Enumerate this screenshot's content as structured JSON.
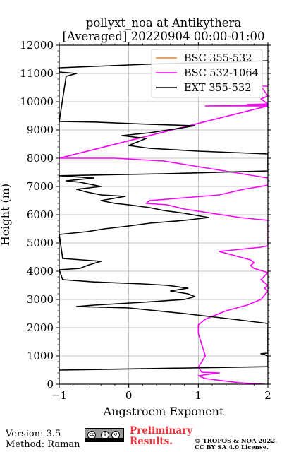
{
  "chart_data": {
    "type": "line",
    "title": "pollyxt_noa at Antikythera",
    "subtitle": "[Averaged] 20220904 00:00-01:00",
    "xlabel": "Angstroem Exponent",
    "ylabel": "Height (m)",
    "xlim": [
      -1,
      2
    ],
    "ylim": [
      0,
      12000
    ],
    "xticks": [
      "−1",
      "0",
      "1",
      "2"
    ],
    "yticks": [
      "0",
      "1000",
      "2000",
      "3000",
      "4000",
      "5000",
      "6000",
      "7000",
      "8000",
      "9000",
      "10000",
      "11000",
      "12000"
    ],
    "grid": true,
    "legend_position": "top-right",
    "series": [
      {
        "name": "BSC 355-532",
        "color": "#ff7f0e",
        "points": []
      },
      {
        "name": "BSC 532-1064",
        "color": "#ff00ff",
        "points": [
          [
            1.95,
            0
          ],
          [
            1.6,
            50
          ],
          [
            1.35,
            120
          ],
          [
            1.1,
            200
          ],
          [
            1.0,
            300
          ],
          [
            1.3,
            400
          ],
          [
            1.05,
            420
          ],
          [
            1.0,
            600
          ],
          [
            1.05,
            800
          ],
          [
            1.1,
            1000
          ],
          [
            1.05,
            1400
          ],
          [
            1.0,
            1800
          ],
          [
            1.0,
            2100
          ],
          [
            1.1,
            2300
          ],
          [
            1.4,
            2600
          ],
          [
            1.7,
            2800
          ],
          [
            1.9,
            3000
          ],
          [
            2.0,
            3300
          ],
          [
            1.95,
            3400
          ],
          [
            2.0,
            3500
          ],
          [
            1.9,
            3700
          ],
          [
            2.0,
            3950
          ],
          [
            1.8,
            4100
          ],
          [
            1.75,
            4200
          ],
          [
            1.8,
            4300
          ],
          [
            1.75,
            4400
          ],
          [
            1.6,
            4500
          ],
          [
            1.3,
            4700
          ],
          [
            1.5,
            4750
          ],
          [
            1.9,
            4850
          ],
          [
            2.0,
            4900
          ],
          [
            2.0,
            5800
          ],
          [
            1.6,
            5900
          ],
          [
            1.2,
            6050
          ],
          [
            0.8,
            6200
          ],
          [
            0.55,
            6350
          ],
          [
            0.25,
            6400
          ],
          [
            0.3,
            6500
          ],
          [
            0.8,
            6600
          ],
          [
            1.3,
            6700
          ],
          [
            1.65,
            6900
          ],
          [
            1.9,
            7000
          ],
          [
            2.0,
            7050
          ],
          [
            2.0,
            7300
          ],
          [
            1.5,
            7500
          ],
          [
            1.0,
            7700
          ],
          [
            0.5,
            7900
          ],
          [
            -0.2,
            8000
          ],
          [
            -0.5,
            8000
          ],
          [
            -1.0,
            8000
          ],
          [
            2.0,
            9850
          ],
          [
            1.1,
            9850
          ],
          [
            2.0,
            9880
          ],
          [
            1.7,
            9900
          ],
          [
            2.0,
            9920
          ],
          [
            1.9,
            10100
          ],
          [
            2.0,
            10200
          ],
          [
            1.9,
            10550
          ],
          [
            2.0,
            10550
          ]
        ]
      },
      {
        "name": "EXT 355-532",
        "color": "#000000",
        "points": [
          [
            -1.0,
            500
          ],
          [
            2.0,
            620
          ],
          [
            2.0,
            1000
          ],
          [
            1.95,
            1050
          ],
          [
            1.9,
            1080
          ],
          [
            2.0,
            1100
          ],
          [
            2.0,
            2150
          ],
          [
            1.5,
            2300
          ],
          [
            0.8,
            2500
          ],
          [
            0.0,
            2700
          ],
          [
            -0.75,
            2750
          ],
          [
            -0.5,
            2800
          ],
          [
            0.2,
            2900
          ],
          [
            0.8,
            3000
          ],
          [
            0.95,
            3100
          ],
          [
            0.85,
            3200
          ],
          [
            0.6,
            3300
          ],
          [
            0.85,
            3400
          ],
          [
            0.55,
            3500
          ],
          [
            0.2,
            3550
          ],
          [
            -0.5,
            3620
          ],
          [
            -0.95,
            3700
          ],
          [
            -1.0,
            4050
          ],
          [
            -0.7,
            4100
          ],
          [
            -0.6,
            4200
          ],
          [
            -0.4,
            4350
          ],
          [
            -0.95,
            4450
          ],
          [
            -1.0,
            5300
          ],
          [
            -0.6,
            5400
          ],
          [
            -0.35,
            5500
          ],
          [
            0.0,
            5600
          ],
          [
            0.3,
            5700
          ],
          [
            0.8,
            5800
          ],
          [
            1.15,
            5900
          ],
          [
            0.8,
            6050
          ],
          [
            0.5,
            6150
          ],
          [
            0.3,
            6250
          ],
          [
            0.0,
            6350
          ],
          [
            -0.2,
            6400
          ],
          [
            -0.4,
            6500
          ],
          [
            -0.05,
            6650
          ],
          [
            -0.4,
            6700
          ],
          [
            -0.6,
            6800
          ],
          [
            -0.75,
            6900
          ],
          [
            -0.4,
            7000
          ],
          [
            -0.7,
            7150
          ],
          [
            -0.9,
            7200
          ],
          [
            -0.5,
            7300
          ],
          [
            -1.0,
            7380
          ],
          [
            0.5,
            7450
          ],
          [
            2.0,
            7550
          ],
          [
            2.0,
            8150
          ],
          [
            1.0,
            8250
          ],
          [
            0.3,
            8350
          ],
          [
            0.0,
            8450
          ],
          [
            0.15,
            8600
          ],
          [
            0.25,
            8700
          ],
          [
            -0.1,
            8800
          ],
          [
            0.3,
            8900
          ],
          [
            0.7,
            9050
          ],
          [
            0.95,
            9150
          ],
          [
            0.3,
            9200
          ],
          [
            -0.5,
            9280
          ],
          [
            -1.0,
            9300
          ],
          [
            -0.9,
            10900
          ],
          [
            -0.75,
            11000
          ],
          [
            -1.0,
            11050
          ],
          [
            -1.0,
            11200
          ],
          [
            0.5,
            11350
          ],
          [
            1.5,
            11400
          ],
          [
            2.0,
            11450
          ]
        ]
      }
    ]
  },
  "footer": {
    "version": "Version: 3.5",
    "method": "Method: Raman",
    "preliminary_line1": "Preliminary",
    "preliminary_line2": "Results.",
    "copyright": "© TROPOS & NOA 2022.",
    "license": "CC BY SA 4.0 License.",
    "badge_icons": [
      "cc-icon",
      "by-icon",
      "sa-icon"
    ]
  }
}
